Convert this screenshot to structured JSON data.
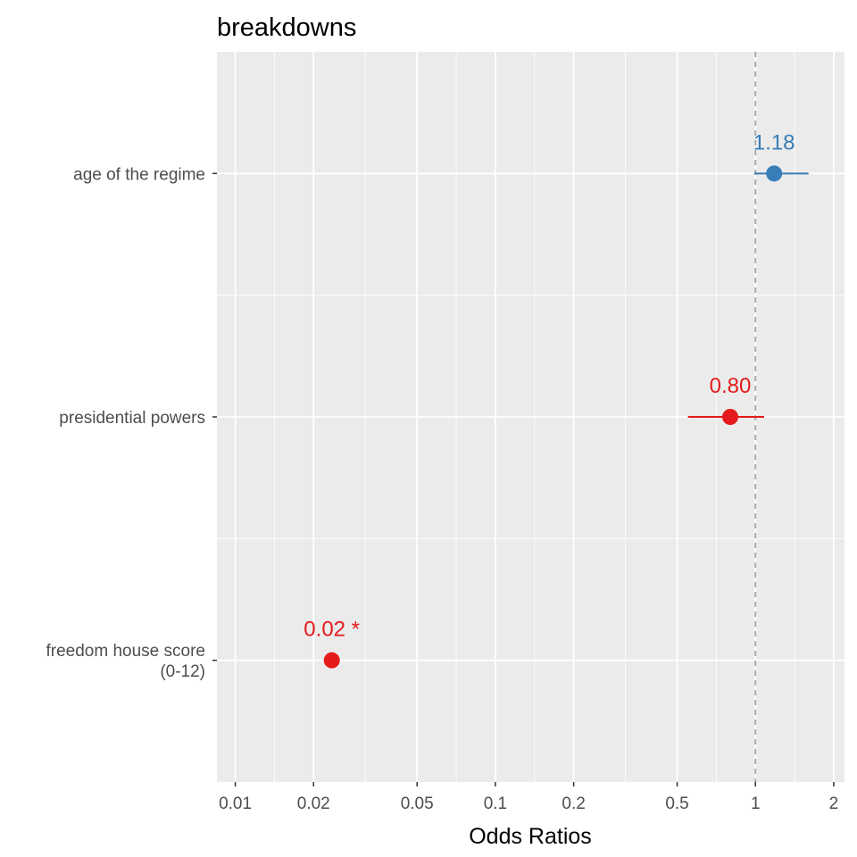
{
  "chart_data": {
    "type": "scatter",
    "subtype": "forest-plot",
    "title": "breakdowns",
    "xlabel": "Odds Ratios",
    "ylabel": "",
    "x_scale": "log",
    "xlim": [
      0.0085,
      2.2
    ],
    "x_ticks": [
      {
        "value": 0.01,
        "label": "0.01"
      },
      {
        "value": 0.02,
        "label": "0.02"
      },
      {
        "value": 0.05,
        "label": "0.05"
      },
      {
        "value": 0.1,
        "label": "0.1"
      },
      {
        "value": 0.2,
        "label": "0.2"
      },
      {
        "value": 0.5,
        "label": "0.5"
      },
      {
        "value": 1,
        "label": "1"
      },
      {
        "value": 2,
        "label": "2"
      }
    ],
    "reference_line": 1,
    "grid": true,
    "terms": [
      {
        "name": "age of the regime",
        "label_lines": [
          "age of the regime"
        ],
        "estimate": 1.18,
        "ci_low": 0.99,
        "ci_high": 1.6,
        "label": "1.18",
        "color": "#377eb8"
      },
      {
        "name": "presidential powers",
        "label_lines": [
          "presidential powers"
        ],
        "estimate": 0.8,
        "ci_low": 0.55,
        "ci_high": 1.08,
        "label": "0.80",
        "color": "#e41a1c"
      },
      {
        "name": "freedom house score (0-12)",
        "label_lines": [
          "freedom house score",
          "(0-12)"
        ],
        "estimate": 0.0235,
        "ci_low": null,
        "ci_high": null,
        "label": "0.02 *",
        "color": "#e41a1c"
      }
    ]
  },
  "colors": {
    "panel_background": "#ebebeb",
    "grid": "#ffffff",
    "reference_line": "#a6a6a6",
    "positive": "#377eb8",
    "negative": "#e41a1c"
  }
}
